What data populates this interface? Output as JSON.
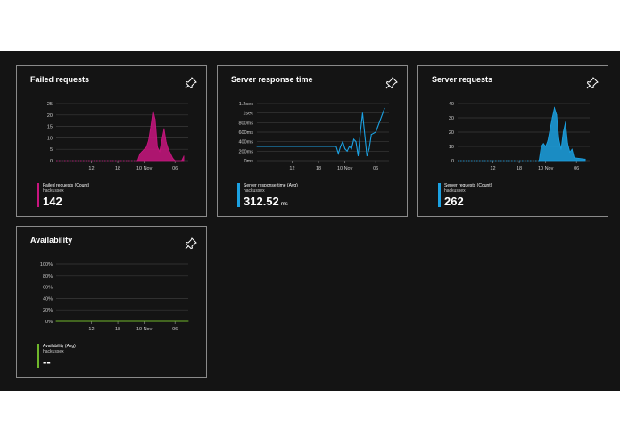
{
  "tiles": [
    {
      "title": "Failed requests",
      "legend": {
        "label": "Failed requests (Count)",
        "sub": "hackussex",
        "value": "142",
        "unit": ""
      },
      "color": "#c8157f",
      "icon": "pin-icon"
    },
    {
      "title": "Server response time",
      "legend": {
        "label": "Server response time (Avg)",
        "sub": "hackussex",
        "value": "312.52",
        "unit": "ms"
      },
      "color": "#1ba1e2",
      "icon": "pin-icon"
    },
    {
      "title": "Server requests",
      "legend": {
        "label": "Server requests (Count)",
        "sub": "hackussex",
        "value": "262",
        "unit": ""
      },
      "color": "#1ba1e2",
      "icon": "pin-icon"
    },
    {
      "title": "Availability",
      "legend": {
        "label": "Availability (Avg)",
        "sub": "hackussex",
        "value": "--",
        "unit": ""
      },
      "color": "#6fb62b",
      "icon": "pin-icon"
    }
  ],
  "chart_data": [
    {
      "type": "area",
      "title": "Failed requests",
      "x_ticks": [
        "12",
        "18",
        "10 Nov",
        "06"
      ],
      "y_ticks": [
        "0",
        "5",
        "10",
        "15",
        "20",
        "25"
      ],
      "ylim": [
        0,
        25
      ],
      "xlim": [
        0,
        30
      ],
      "series": [
        {
          "name": "Failed requests (Count)",
          "color": "#c8157f",
          "x": [
            18.5,
            19,
            19.5,
            20,
            20.5,
            21,
            21.5,
            22,
            22.5,
            23,
            23.5,
            24,
            24.5,
            25,
            25.5,
            26,
            26.5,
            27,
            28.5,
            29
          ],
          "values": [
            0,
            3,
            4,
            5,
            6,
            9,
            15,
            22,
            18,
            6,
            4,
            9,
            14,
            8,
            5,
            3,
            1,
            0,
            0,
            2
          ]
        }
      ]
    },
    {
      "type": "line",
      "title": "Server response time",
      "x_ticks": [
        "12",
        "18",
        "10 Nov",
        "06"
      ],
      "y_ticks": [
        "0ms",
        "200ms",
        "400ms",
        "600ms",
        "800ms",
        "1sec",
        "1.2sec"
      ],
      "ylim": [
        0,
        1200
      ],
      "xlim": [
        0,
        30
      ],
      "series": [
        {
          "name": "Server response time (Avg)",
          "color": "#1ba1e2",
          "x": [
            0,
            18,
            18.5,
            19,
            19.5,
            20,
            20.5,
            21,
            21.5,
            22,
            22.5,
            23,
            23.5,
            24,
            25,
            25.5,
            26,
            27,
            28,
            29
          ],
          "values": [
            300,
            300,
            150,
            300,
            400,
            250,
            200,
            300,
            250,
            450,
            400,
            100,
            600,
            1000,
            100,
            250,
            550,
            600,
            850,
            1100
          ]
        }
      ]
    },
    {
      "type": "area",
      "title": "Server requests",
      "x_ticks": [
        "12",
        "18",
        "10 Nov",
        "06"
      ],
      "y_ticks": [
        "0",
        "10",
        "20",
        "30",
        "40"
      ],
      "ylim": [
        0,
        40
      ],
      "xlim": [
        0,
        30
      ],
      "series": [
        {
          "name": "Server requests (Count)",
          "color": "#1ba1e2",
          "x": [
            18.5,
            19,
            19.5,
            20,
            20.5,
            21,
            21.5,
            22,
            22.5,
            23,
            23.5,
            24,
            24.5,
            25,
            25.5,
            26,
            26.5,
            29
          ],
          "values": [
            0,
            10,
            12,
            10,
            14,
            22,
            30,
            37,
            32,
            15,
            8,
            20,
            27,
            12,
            6,
            8,
            2,
            1
          ]
        }
      ]
    },
    {
      "type": "line",
      "title": "Availability",
      "x_ticks": [
        "12",
        "18",
        "10 Nov",
        "06"
      ],
      "y_ticks": [
        "0%",
        "20%",
        "40%",
        "60%",
        "80%",
        "100%"
      ],
      "ylim": [
        0,
        100
      ],
      "xlim": [
        0,
        30
      ],
      "series": [
        {
          "name": "Availability (Avg)",
          "color": "#6fb62b",
          "x": [
            0,
            30
          ],
          "values": [
            0,
            0
          ]
        }
      ]
    }
  ]
}
